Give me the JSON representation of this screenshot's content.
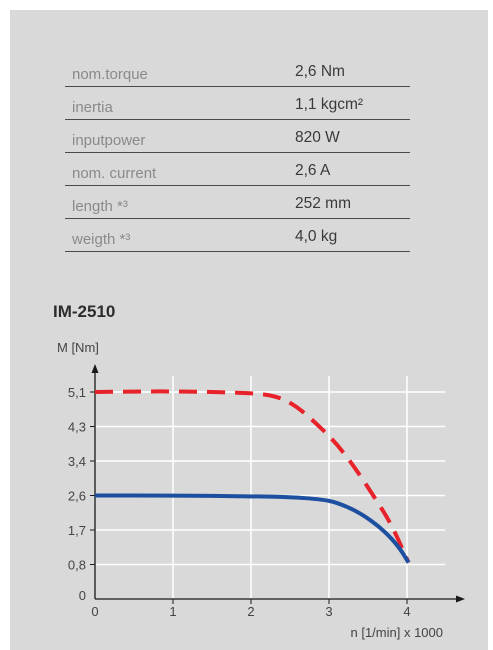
{
  "specs": [
    {
      "label": "nom.torque",
      "value": "2,6 Nm"
    },
    {
      "label": "inertia",
      "value": "1,1 kgcm²"
    },
    {
      "label": "inputpower",
      "value": "820 W"
    },
    {
      "label": "nom. current",
      "value": "2,6 A"
    },
    {
      "label": "length *³",
      "value": "252 mm"
    },
    {
      "label": "weigth *³",
      "value": "4,0 kg"
    }
  ],
  "chart_data": {
    "type": "line",
    "title": "IM-2510",
    "ylabel": "M [Nm]",
    "xlabel": "n [1/min] x 1000",
    "x_ticks": [
      0,
      1,
      2,
      3,
      4
    ],
    "y_ticks": [
      "0",
      "0,8",
      "1,7",
      "2,6",
      "3,4",
      "4,3",
      "5,1"
    ],
    "xlim": [
      0,
      4.7
    ],
    "ylim": [
      0,
      5.9
    ],
    "grid": true,
    "series": [
      {
        "style": "dashed",
        "color": "#e8222a",
        "points": [
          [
            0,
            5.1
          ],
          [
            1,
            5.12
          ],
          [
            2,
            5.08
          ],
          [
            2.35,
            5.0
          ],
          [
            2.6,
            4.75
          ],
          [
            2.85,
            4.35
          ],
          [
            3.1,
            3.85
          ],
          [
            3.35,
            3.2
          ],
          [
            3.6,
            2.5
          ],
          [
            3.8,
            1.85
          ],
          [
            4.02,
            0.85
          ]
        ]
      },
      {
        "style": "solid",
        "color": "#1d4fa0",
        "points": [
          [
            0,
            2.6
          ],
          [
            1,
            2.6
          ],
          [
            2,
            2.58
          ],
          [
            2.5,
            2.56
          ],
          [
            2.9,
            2.5
          ],
          [
            3.1,
            2.42
          ],
          [
            3.4,
            2.15
          ],
          [
            3.7,
            1.7
          ],
          [
            3.9,
            1.25
          ],
          [
            4.02,
            0.85
          ]
        ]
      }
    ]
  }
}
